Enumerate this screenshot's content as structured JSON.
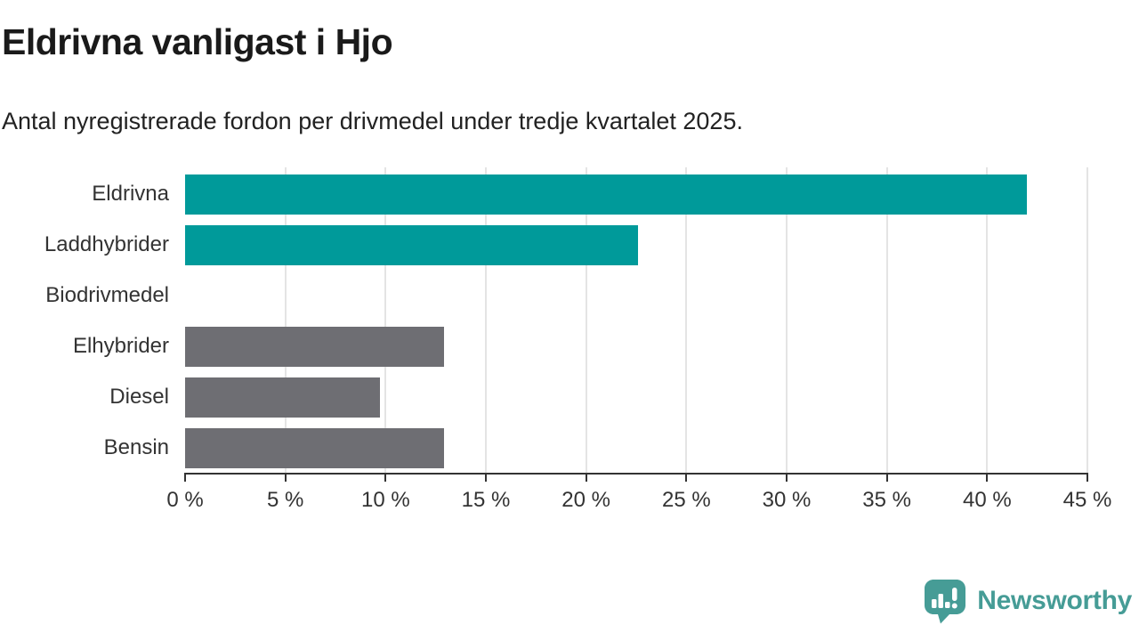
{
  "header": {
    "title": "Eldrivna vanligast i Hjo",
    "subtitle": "Antal nyregistrerade fordon per drivmedel under tredje kvartalet 2025."
  },
  "chart_data": {
    "type": "bar",
    "orientation": "horizontal",
    "title": "Eldrivna vanligast i Hjo",
    "subtitle": "Antal nyregistrerade fordon per drivmedel under tredje kvartalet 2025.",
    "categories": [
      "Eldrivna",
      "Laddhybrider",
      "Biodrivmedel",
      "Elhybrider",
      "Diesel",
      "Bensin"
    ],
    "values": [
      42.0,
      22.6,
      0,
      12.9,
      9.7,
      12.9
    ],
    "unit": "%",
    "bar_colors": [
      "#009a9a",
      "#009a9a",
      "#6e6e73",
      "#6e6e73",
      "#6e6e73",
      "#6e6e73"
    ],
    "xlim": [
      0,
      45
    ],
    "x_ticks": [
      {
        "value": 0,
        "label": "0 %"
      },
      {
        "value": 5,
        "label": "5 %"
      },
      {
        "value": 10,
        "label": "10 %"
      },
      {
        "value": 15,
        "label": "15 %"
      },
      {
        "value": 20,
        "label": "20 %"
      },
      {
        "value": 25,
        "label": "25 %"
      },
      {
        "value": 30,
        "label": "30 %"
      },
      {
        "value": 35,
        "label": "35 %"
      },
      {
        "value": 40,
        "label": "40 %"
      },
      {
        "value": 45,
        "label": "45 %"
      }
    ],
    "grid": true,
    "legend": false
  },
  "branding": {
    "wordmark": "Newsworthy",
    "logo_icon": "bar-chart-speech-bubble-icon",
    "color": "#469c96"
  },
  "colors": {
    "highlight": "#009a9a",
    "muted": "#6e6e73",
    "grid": "#e4e4e4",
    "axis": "#333333",
    "text": "#333333",
    "title": "#1a1a1a"
  }
}
